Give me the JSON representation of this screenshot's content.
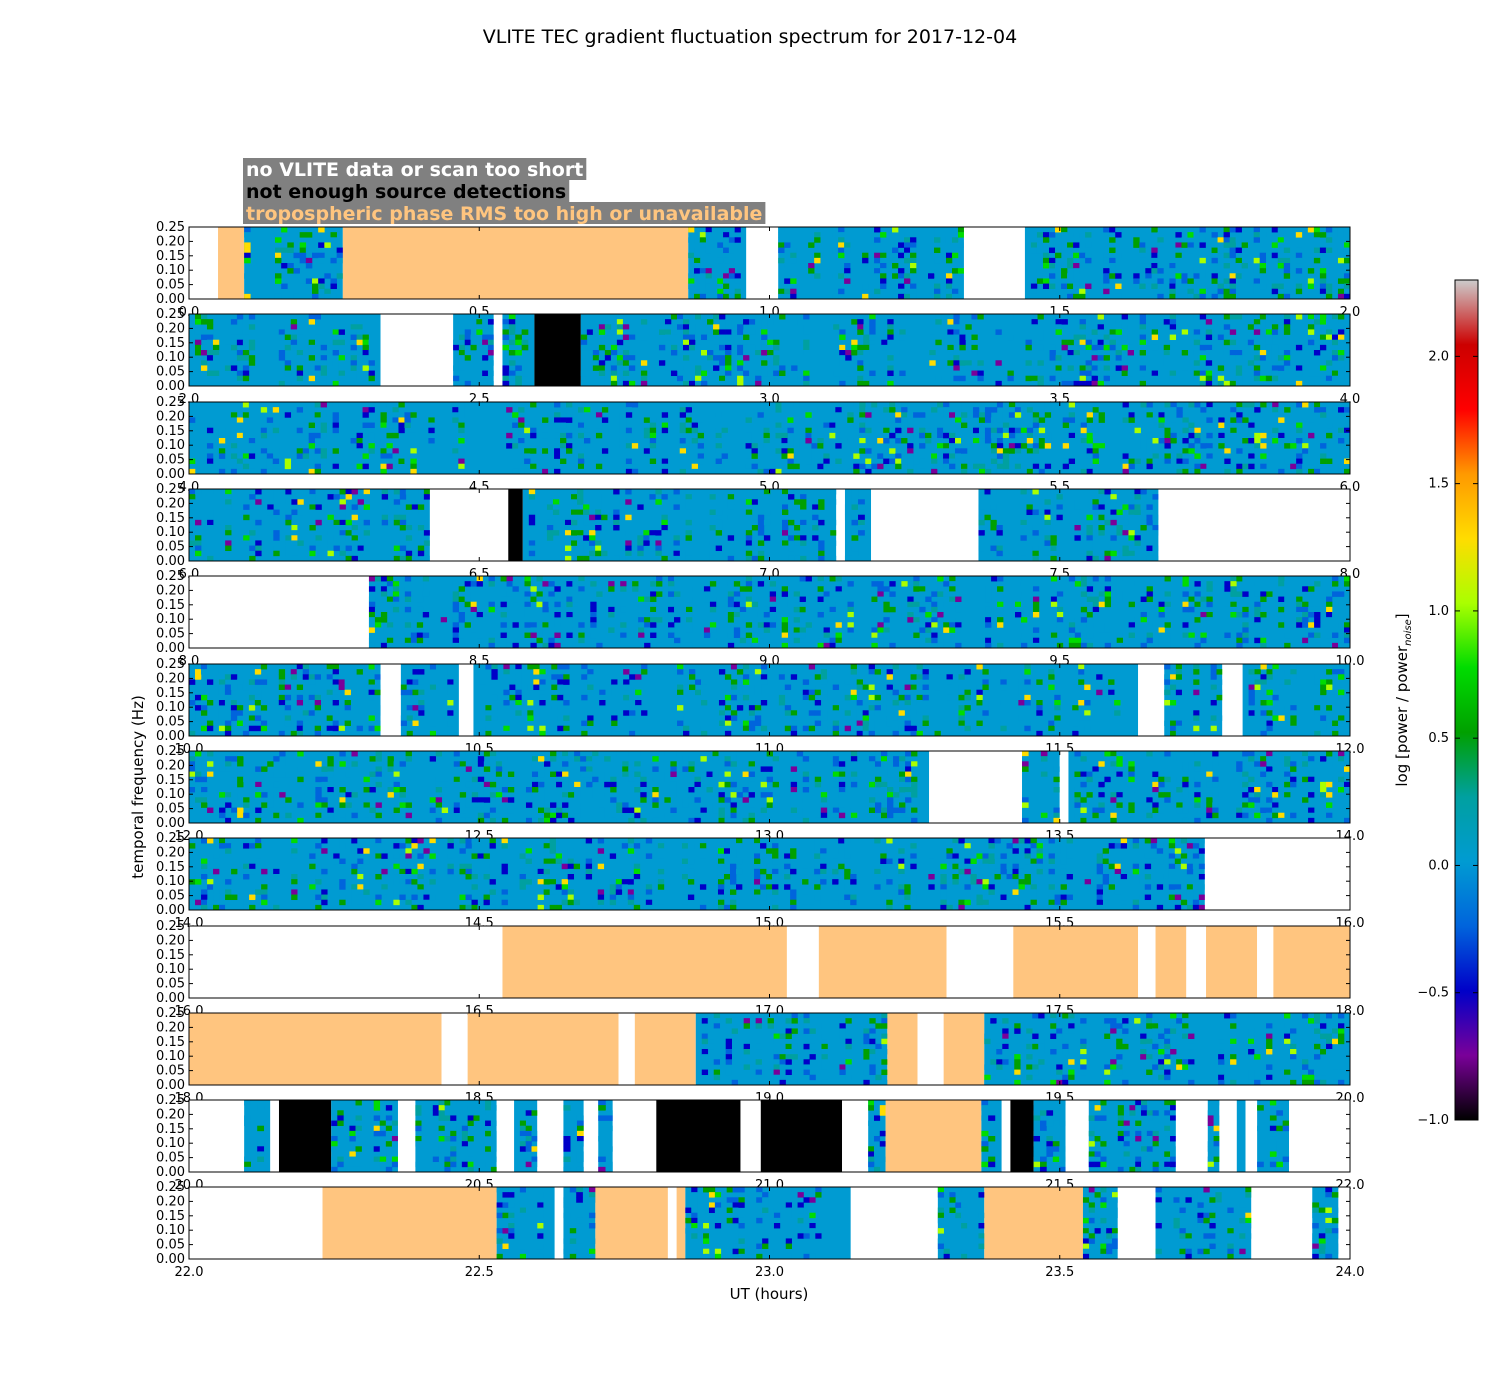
{
  "chart_data": {
    "type": "heatmap",
    "title": "VLITE TEC gradient fluctuation spectrum for 2017-12-04",
    "xlabel": "UT (hours)",
    "ylabel": "temporal frequency (Hz)",
    "ylim": [
      0,
      0.25
    ],
    "yticks": [
      "0.00",
      "0.05",
      "0.10",
      "0.15",
      "0.20",
      "0.25"
    ],
    "colorbar": {
      "label": "log [power / power",
      "label_sub": "noise",
      "label_end": "]",
      "range": [
        -1.0,
        2.3
      ],
      "ticks": [
        "−1.0",
        "−0.5",
        "0.0",
        "0.5",
        "1.0",
        "1.5",
        "2.0"
      ],
      "tick_values": [
        -1.0,
        -0.5,
        0.0,
        0.5,
        1.0,
        1.5,
        2.0
      ],
      "colormap": [
        "#000000",
        "#7a0099",
        "#0000c8",
        "#0064dc",
        "#009bd2",
        "#00a0a0",
        "#00a000",
        "#00dc00",
        "#aaff00",
        "#ffdc00",
        "#ff9900",
        "#ff0000",
        "#cc0000",
        "#cccccc"
      ]
    },
    "legend": [
      {
        "label": "no VLITE data or scan too short",
        "color": "#ffffff"
      },
      {
        "label": "not enough source detections",
        "color": "#000000"
      },
      {
        "label": "tropospheric phase RMS too high or unavailable",
        "color": "#ffc57f"
      }
    ],
    "legend_box_color": "#808080",
    "category_colors": {
      "nodata": "#ffffff",
      "nodet": "#000000",
      "tropo": "#ffc57f",
      "spectrum_base": "#009bd2"
    },
    "rows": [
      {
        "xlim": [
          0,
          2
        ],
        "xticks": [
          "0.0",
          "0.5",
          "1.0",
          "1.5",
          "2.0"
        ],
        "segments": [
          [
            0.0,
            0.05,
            "nodata"
          ],
          [
            0.05,
            0.095,
            "tropo"
          ],
          [
            0.095,
            0.265,
            "spectrum"
          ],
          [
            0.265,
            0.86,
            "tropo"
          ],
          [
            0.86,
            0.96,
            "spectrum"
          ],
          [
            0.96,
            1.015,
            "nodata"
          ],
          [
            1.015,
            1.335,
            "spectrum"
          ],
          [
            1.335,
            1.44,
            "nodata"
          ],
          [
            1.44,
            2.0,
            "spectrum"
          ]
        ]
      },
      {
        "xlim": [
          2,
          4
        ],
        "xticks": [
          "2.0",
          "2.5",
          "3.0",
          "3.5",
          "4.0"
        ],
        "segments": [
          [
            2.0,
            2.33,
            "spectrum"
          ],
          [
            2.33,
            2.455,
            "nodata"
          ],
          [
            2.455,
            2.525,
            "spectrum"
          ],
          [
            2.525,
            2.54,
            "nodata"
          ],
          [
            2.54,
            2.595,
            "spectrum"
          ],
          [
            2.595,
            2.675,
            "nodet"
          ],
          [
            2.675,
            4.0,
            "spectrum"
          ]
        ]
      },
      {
        "xlim": [
          4,
          6
        ],
        "xticks": [
          "4.0",
          "4.5",
          "5.0",
          "5.5",
          "6.0"
        ],
        "segments": [
          [
            4.0,
            6.0,
            "spectrum"
          ]
        ]
      },
      {
        "xlim": [
          6,
          8
        ],
        "xticks": [
          "6.0",
          "6.5",
          "7.0",
          "7.5",
          "8.0"
        ],
        "segments": [
          [
            6.0,
            6.415,
            "spectrum"
          ],
          [
            6.415,
            6.55,
            "nodata"
          ],
          [
            6.55,
            6.575,
            "nodet"
          ],
          [
            6.575,
            7.115,
            "spectrum"
          ],
          [
            7.115,
            7.13,
            "nodata"
          ],
          [
            7.13,
            7.175,
            "spectrum"
          ],
          [
            7.175,
            7.36,
            "nodata"
          ],
          [
            7.36,
            7.67,
            "spectrum"
          ],
          [
            7.67,
            8.0,
            "nodata"
          ]
        ]
      },
      {
        "xlim": [
          8,
          10
        ],
        "xticks": [
          "8.0",
          "8.5",
          "9.0",
          "9.5",
          "10.0"
        ],
        "segments": [
          [
            8.0,
            8.31,
            "nodata"
          ],
          [
            8.31,
            10.0,
            "spectrum"
          ]
        ]
      },
      {
        "xlim": [
          10,
          12
        ],
        "xticks": [
          "10.0",
          "10.5",
          "11.0",
          "11.5",
          "12.0"
        ],
        "segments": [
          [
            10.0,
            10.33,
            "spectrum"
          ],
          [
            10.33,
            10.365,
            "nodata"
          ],
          [
            10.365,
            10.465,
            "spectrum"
          ],
          [
            10.465,
            10.49,
            "nodata"
          ],
          [
            10.49,
            11.635,
            "spectrum"
          ],
          [
            11.635,
            11.68,
            "nodata"
          ],
          [
            11.68,
            11.78,
            "spectrum"
          ],
          [
            11.78,
            11.815,
            "nodata"
          ],
          [
            11.815,
            12.0,
            "spectrum"
          ]
        ]
      },
      {
        "xlim": [
          12,
          14
        ],
        "xticks": [
          "12.0",
          "12.5",
          "13.0",
          "13.5",
          "14.0"
        ],
        "segments": [
          [
            12.0,
            13.275,
            "spectrum"
          ],
          [
            13.275,
            13.435,
            "nodata"
          ],
          [
            13.435,
            13.5,
            "spectrum"
          ],
          [
            13.5,
            13.515,
            "nodata"
          ],
          [
            13.515,
            14.0,
            "spectrum"
          ]
        ]
      },
      {
        "xlim": [
          14,
          16
        ],
        "xticks": [
          "14.0",
          "14.5",
          "15.0",
          "15.5",
          "16.0"
        ],
        "segments": [
          [
            14.0,
            15.75,
            "spectrum"
          ],
          [
            15.75,
            16.0,
            "nodata"
          ]
        ]
      },
      {
        "xlim": [
          16,
          18
        ],
        "xticks": [
          "16.0",
          "16.5",
          "17.0",
          "17.5",
          "18.0"
        ],
        "segments": [
          [
            16.0,
            16.54,
            "nodata"
          ],
          [
            16.54,
            17.03,
            "tropo"
          ],
          [
            17.03,
            17.085,
            "nodata"
          ],
          [
            17.085,
            17.305,
            "tropo"
          ],
          [
            17.305,
            17.42,
            "nodata"
          ],
          [
            17.42,
            17.635,
            "tropo"
          ],
          [
            17.635,
            17.665,
            "nodata"
          ],
          [
            17.665,
            17.718,
            "tropo"
          ],
          [
            17.718,
            17.752,
            "nodata"
          ],
          [
            17.752,
            17.84,
            "tropo"
          ],
          [
            17.84,
            17.868,
            "nodata"
          ],
          [
            17.868,
            18.0,
            "tropo"
          ]
        ]
      },
      {
        "xlim": [
          18,
          20
        ],
        "xticks": [
          "18.0",
          "18.5",
          "19.0",
          "19.5",
          "20.0"
        ],
        "segments": [
          [
            18.0,
            18.435,
            "tropo"
          ],
          [
            18.435,
            18.48,
            "nodata"
          ],
          [
            18.48,
            18.74,
            "tropo"
          ],
          [
            18.74,
            18.768,
            "nodata"
          ],
          [
            18.768,
            18.873,
            "tropo"
          ],
          [
            18.873,
            19.203,
            "spectrum"
          ],
          [
            19.203,
            19.255,
            "tropo"
          ],
          [
            19.255,
            19.3,
            "nodata"
          ],
          [
            19.3,
            19.37,
            "tropo"
          ],
          [
            19.37,
            20.0,
            "spectrum"
          ]
        ]
      },
      {
        "xlim": [
          20,
          22
        ],
        "xticks": [
          "20.0",
          "20.5",
          "21.0",
          "21.5",
          "22.0"
        ],
        "segments": [
          [
            20.0,
            20.095,
            "nodata"
          ],
          [
            20.095,
            20.14,
            "spectrum"
          ],
          [
            20.14,
            20.155,
            "nodata"
          ],
          [
            20.155,
            20.245,
            "nodet"
          ],
          [
            20.245,
            20.36,
            "spectrum"
          ],
          [
            20.36,
            20.39,
            "nodata"
          ],
          [
            20.39,
            20.53,
            "spectrum"
          ],
          [
            20.53,
            20.56,
            "nodata"
          ],
          [
            20.56,
            20.6,
            "spectrum"
          ],
          [
            20.6,
            20.645,
            "nodata"
          ],
          [
            20.645,
            20.68,
            "spectrum"
          ],
          [
            20.68,
            20.705,
            "nodata"
          ],
          [
            20.705,
            20.73,
            "spectrum"
          ],
          [
            20.73,
            20.805,
            "nodata"
          ],
          [
            20.805,
            20.95,
            "nodet"
          ],
          [
            20.95,
            20.985,
            "nodata"
          ],
          [
            20.985,
            21.125,
            "nodet"
          ],
          [
            21.125,
            21.17,
            "nodata"
          ],
          [
            21.17,
            21.2,
            "spectrum"
          ],
          [
            21.2,
            21.365,
            "tropo"
          ],
          [
            21.365,
            21.4,
            "spectrum"
          ],
          [
            21.4,
            21.415,
            "nodata"
          ],
          [
            21.415,
            21.455,
            "nodet"
          ],
          [
            21.455,
            21.51,
            "spectrum"
          ],
          [
            21.51,
            21.55,
            "nodata"
          ],
          [
            21.55,
            21.7,
            "spectrum"
          ],
          [
            21.7,
            21.755,
            "nodata"
          ],
          [
            21.755,
            21.775,
            "spectrum"
          ],
          [
            21.775,
            21.805,
            "nodata"
          ],
          [
            21.805,
            21.82,
            "spectrum"
          ],
          [
            21.82,
            21.84,
            "nodata"
          ],
          [
            21.84,
            21.895,
            "spectrum"
          ],
          [
            21.895,
            22.0,
            "nodata"
          ]
        ]
      },
      {
        "xlim": [
          22,
          24
        ],
        "xticks": [
          "22.0",
          "22.5",
          "23.0",
          "23.5",
          "24.0"
        ],
        "segments": [
          [
            22.0,
            22.23,
            "nodata"
          ],
          [
            22.23,
            22.53,
            "tropo"
          ],
          [
            22.53,
            22.63,
            "spectrum"
          ],
          [
            22.63,
            22.645,
            "nodata"
          ],
          [
            22.645,
            22.7,
            "spectrum"
          ],
          [
            22.7,
            22.825,
            "tropo"
          ],
          [
            22.825,
            22.84,
            "nodata"
          ],
          [
            22.84,
            22.855,
            "tropo"
          ],
          [
            22.855,
            23.14,
            "spectrum"
          ],
          [
            23.14,
            23.29,
            "nodata"
          ],
          [
            23.29,
            23.37,
            "spectrum"
          ],
          [
            23.37,
            23.54,
            "tropo"
          ],
          [
            23.54,
            23.6,
            "spectrum"
          ],
          [
            23.6,
            23.665,
            "nodata"
          ],
          [
            23.665,
            23.83,
            "spectrum"
          ],
          [
            23.83,
            23.935,
            "nodata"
          ],
          [
            23.935,
            23.98,
            "spectrum"
          ],
          [
            23.98,
            24.0,
            "nodata"
          ]
        ]
      }
    ]
  }
}
